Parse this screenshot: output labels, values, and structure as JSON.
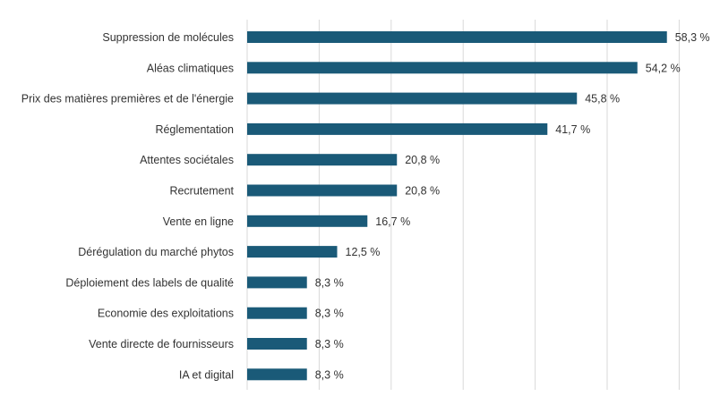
{
  "chart_data": {
    "type": "bar",
    "orientation": "horizontal",
    "title": "",
    "xlabel": "",
    "ylabel": "",
    "xlim": [
      0,
      60
    ],
    "grid": true,
    "bar_color": "#1a5a78",
    "grid_color": "#d9d9d9",
    "categories": [
      "Suppression de molécules",
      "Aléas climatiques",
      "Prix des matières premières et de l'énergie",
      "Réglementation",
      "Attentes sociétales",
      "Recrutement",
      "Vente en ligne",
      "Dérégulation du marché phytos",
      "Déploiement des labels de qualité",
      "Economie des exploitations",
      "Vente directe de fournisseurs",
      "IA et digital"
    ],
    "values": [
      58.3,
      54.2,
      45.8,
      41.7,
      20.8,
      20.8,
      16.7,
      12.5,
      8.3,
      8.3,
      8.3,
      8.3
    ],
    "value_labels": [
      "58,3 %",
      "54,2 %",
      "45,8 %",
      "41,7 %",
      "20,8 %",
      "20,8 %",
      "16,7 %",
      "12,5 %",
      "8,3 %",
      "8,3 %",
      "8,3 %",
      "8,3 %"
    ]
  }
}
